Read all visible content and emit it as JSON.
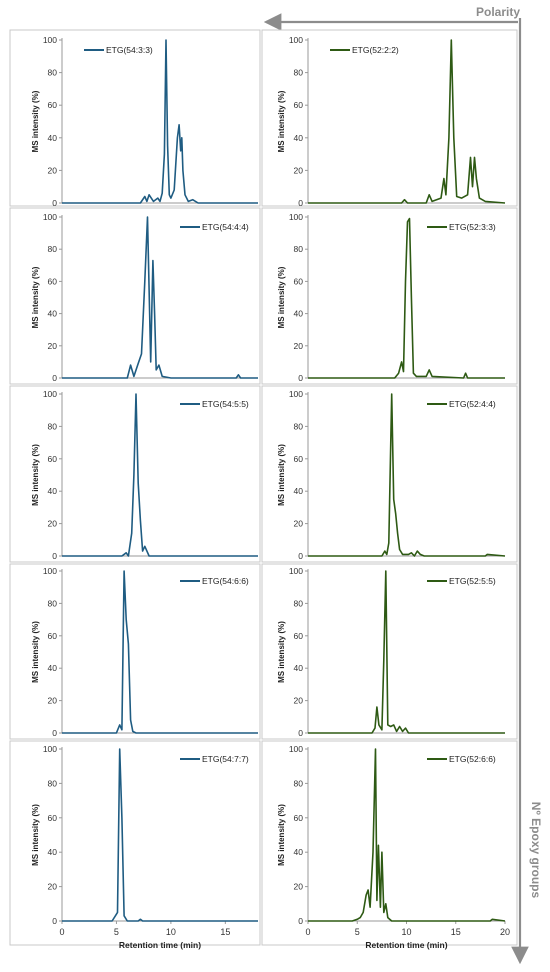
{
  "polarity_label": "Polarity",
  "epoxy_label": "Nº Epoxy groups",
  "colors": {
    "blue": "#1f5c82",
    "green": "#2e5a14",
    "arrow": "#8c8c8c",
    "panel_border": "#c9c9c9",
    "axis": "#9a9a9a"
  },
  "chart_data": [
    {
      "type": "line",
      "name": "ETG(54:3:3)",
      "color": "blue",
      "ylabel": "MS intensity (%)",
      "xlabel": "",
      "xlim": [
        0,
        18
      ],
      "ylim": [
        0,
        100
      ],
      "yticks": [
        0,
        20,
        40,
        60,
        80,
        100
      ],
      "xticks": [],
      "grid": false,
      "x": [
        0,
        7.2,
        7.6,
        7.8,
        8.0,
        8.4,
        8.8,
        9.0,
        9.2,
        9.4,
        9.55,
        9.7,
        9.85,
        10.0,
        10.3,
        10.6,
        10.75,
        10.9,
        11.0,
        11.1,
        11.3,
        11.6,
        12.0,
        12.5,
        18
      ],
      "y": [
        0,
        0,
        4,
        1,
        5,
        1,
        3,
        1,
        6,
        30,
        100,
        35,
        5,
        3,
        8,
        40,
        48,
        32,
        40,
        20,
        5,
        1,
        2,
        0,
        0
      ]
    },
    {
      "type": "line",
      "name": "ETG(52:2:2)",
      "color": "green",
      "ylabel": "MS intensity (%)",
      "xlabel": "",
      "xlim": [
        0,
        20
      ],
      "ylim": [
        0,
        100
      ],
      "yticks": [
        0,
        20,
        40,
        60,
        80,
        100
      ],
      "xticks": [],
      "grid": false,
      "x": [
        0,
        9.5,
        9.8,
        10.1,
        12.0,
        12.3,
        12.6,
        13.5,
        13.8,
        14.0,
        14.3,
        14.55,
        14.8,
        15.1,
        15.6,
        16.2,
        16.5,
        16.7,
        16.9,
        17.1,
        17.4,
        18.0,
        20
      ],
      "y": [
        0,
        0,
        2,
        0,
        0,
        5,
        1,
        3,
        15,
        5,
        40,
        100,
        40,
        4,
        3,
        5,
        28,
        10,
        28,
        15,
        3,
        1,
        0
      ]
    },
    {
      "type": "line",
      "name": "ETG(54:4:4)",
      "color": "blue",
      "ylabel": "MS intensity (%)",
      "xlabel": "",
      "xlim": [
        0,
        18
      ],
      "ylim": [
        0,
        100
      ],
      "yticks": [
        0,
        20,
        40,
        60,
        80,
        100
      ],
      "xticks": [],
      "grid": false,
      "x": [
        0,
        6.0,
        6.3,
        6.6,
        7.0,
        7.3,
        7.6,
        7.85,
        8.0,
        8.15,
        8.35,
        8.5,
        8.65,
        8.9,
        9.2,
        10,
        16.0,
        16.2,
        16.4,
        18
      ],
      "y": [
        0,
        0,
        8,
        1,
        9,
        15,
        60,
        100,
        55,
        10,
        73,
        40,
        5,
        8,
        1,
        0,
        0,
        2,
        0,
        0
      ]
    },
    {
      "type": "line",
      "name": "ETG(52:3:3)",
      "color": "green",
      "ylabel": "MS intensity (%)",
      "xlabel": "",
      "xlim": [
        0,
        20
      ],
      "ylim": [
        0,
        100
      ],
      "yticks": [
        0,
        20,
        40,
        60,
        80,
        100
      ],
      "xticks": [],
      "grid": false,
      "x": [
        0,
        8.8,
        9.2,
        9.5,
        9.7,
        9.9,
        10.1,
        10.3,
        10.5,
        10.7,
        11.0,
        12.0,
        12.3,
        12.6,
        15.8,
        16.0,
        16.2,
        20
      ],
      "y": [
        0,
        0,
        3,
        10,
        4,
        60,
        97,
        99,
        50,
        3,
        1,
        1,
        5,
        1,
        0,
        3,
        0,
        0
      ]
    },
    {
      "type": "line",
      "name": "ETG(54:5:5)",
      "color": "blue",
      "ylabel": "MS intensity (%)",
      "xlabel": "",
      "xlim": [
        0,
        18
      ],
      "ylim": [
        0,
        100
      ],
      "yticks": [
        0,
        20,
        40,
        60,
        80,
        100
      ],
      "xticks": [],
      "grid": false,
      "x": [
        0,
        5.5,
        5.9,
        6.1,
        6.4,
        6.6,
        6.8,
        7.0,
        7.2,
        7.4,
        7.6,
        8.0,
        18
      ],
      "y": [
        0,
        0,
        2,
        0,
        14,
        50,
        100,
        45,
        22,
        3,
        6,
        0,
        0
      ]
    },
    {
      "type": "line",
      "name": "ETG(52:4:4)",
      "color": "green",
      "ylabel": "MS intensity (%)",
      "xlabel": "",
      "xlim": [
        0,
        20
      ],
      "ylim": [
        0,
        100
      ],
      "yticks": [
        0,
        20,
        40,
        60,
        80,
        100
      ],
      "xticks": [],
      "grid": false,
      "x": [
        0,
        7.5,
        7.8,
        8.0,
        8.2,
        8.5,
        8.7,
        8.9,
        9.1,
        9.3,
        9.6,
        10.2,
        10.5,
        10.8,
        11.1,
        11.4,
        11.8,
        18.0,
        18.2,
        20
      ],
      "y": [
        0,
        0,
        3,
        1,
        8,
        100,
        35,
        26,
        14,
        4,
        1,
        1,
        2,
        0,
        3,
        1,
        0,
        0,
        1,
        0
      ]
    },
    {
      "type": "line",
      "name": "ETG(54:6:6)",
      "color": "blue",
      "ylabel": "MS intensity (%)",
      "xlabel": "",
      "xlim": [
        0,
        18
      ],
      "ylim": [
        0,
        100
      ],
      "yticks": [
        0,
        20,
        40,
        60,
        80,
        100
      ],
      "xticks": [],
      "grid": false,
      "x": [
        0,
        5.0,
        5.3,
        5.5,
        5.7,
        5.9,
        6.1,
        6.3,
        6.5,
        6.8,
        18
      ],
      "y": [
        0,
        0,
        5,
        2,
        100,
        70,
        55,
        8,
        1,
        0,
        0
      ]
    },
    {
      "type": "line",
      "name": "ETG(52:5:5)",
      "color": "green",
      "ylabel": "MS intensity (%)",
      "xlabel": "",
      "xlim": [
        0,
        20
      ],
      "ylim": [
        0,
        100
      ],
      "yticks": [
        0,
        20,
        40,
        60,
        80,
        100
      ],
      "xticks": [],
      "grid": false,
      "x": [
        0,
        6.5,
        6.8,
        7.0,
        7.2,
        7.5,
        7.7,
        7.9,
        8.1,
        8.4,
        8.7,
        9.0,
        9.3,
        9.6,
        9.9,
        10.2,
        20
      ],
      "y": [
        0,
        0,
        3,
        16,
        5,
        2,
        45,
        100,
        5,
        4,
        5,
        1,
        4,
        1,
        3,
        0,
        0
      ]
    },
    {
      "type": "line",
      "name": "ETG(54:7:7)",
      "color": "blue",
      "ylabel": "MS intensity (%)",
      "xlabel": "Retention time (min)",
      "xlim": [
        0,
        18
      ],
      "ylim": [
        0,
        100
      ],
      "yticks": [
        0,
        20,
        40,
        60,
        80,
        100
      ],
      "xticks": [
        0,
        5,
        10,
        15
      ],
      "grid": false,
      "x": [
        0,
        4.6,
        4.9,
        5.1,
        5.3,
        5.5,
        5.7,
        6.0,
        7.0,
        7.2,
        7.4,
        18
      ],
      "y": [
        0,
        0,
        3,
        5,
        100,
        60,
        3,
        0,
        0,
        1,
        0,
        0
      ]
    },
    {
      "type": "line",
      "name": "ETG(52:6:6)",
      "color": "green",
      "ylabel": "MS intensity (%)",
      "xlabel": "Retention time (min)",
      "xlim": [
        0,
        20
      ],
      "ylim": [
        0,
        100
      ],
      "yticks": [
        0,
        20,
        40,
        60,
        80,
        100
      ],
      "xticks": [
        0,
        5,
        10,
        15,
        20
      ],
      "grid": false,
      "x": [
        0,
        4.5,
        5.0,
        5.3,
        5.6,
        5.9,
        6.1,
        6.3,
        6.6,
        6.85,
        7.0,
        7.15,
        7.35,
        7.5,
        7.7,
        7.9,
        8.1,
        8.5,
        18.5,
        18.7,
        20
      ],
      "y": [
        0,
        0,
        1,
        2,
        5,
        15,
        18,
        8,
        40,
        100,
        12,
        44,
        8,
        40,
        5,
        10,
        2,
        0,
        0,
        1,
        0
      ]
    }
  ]
}
